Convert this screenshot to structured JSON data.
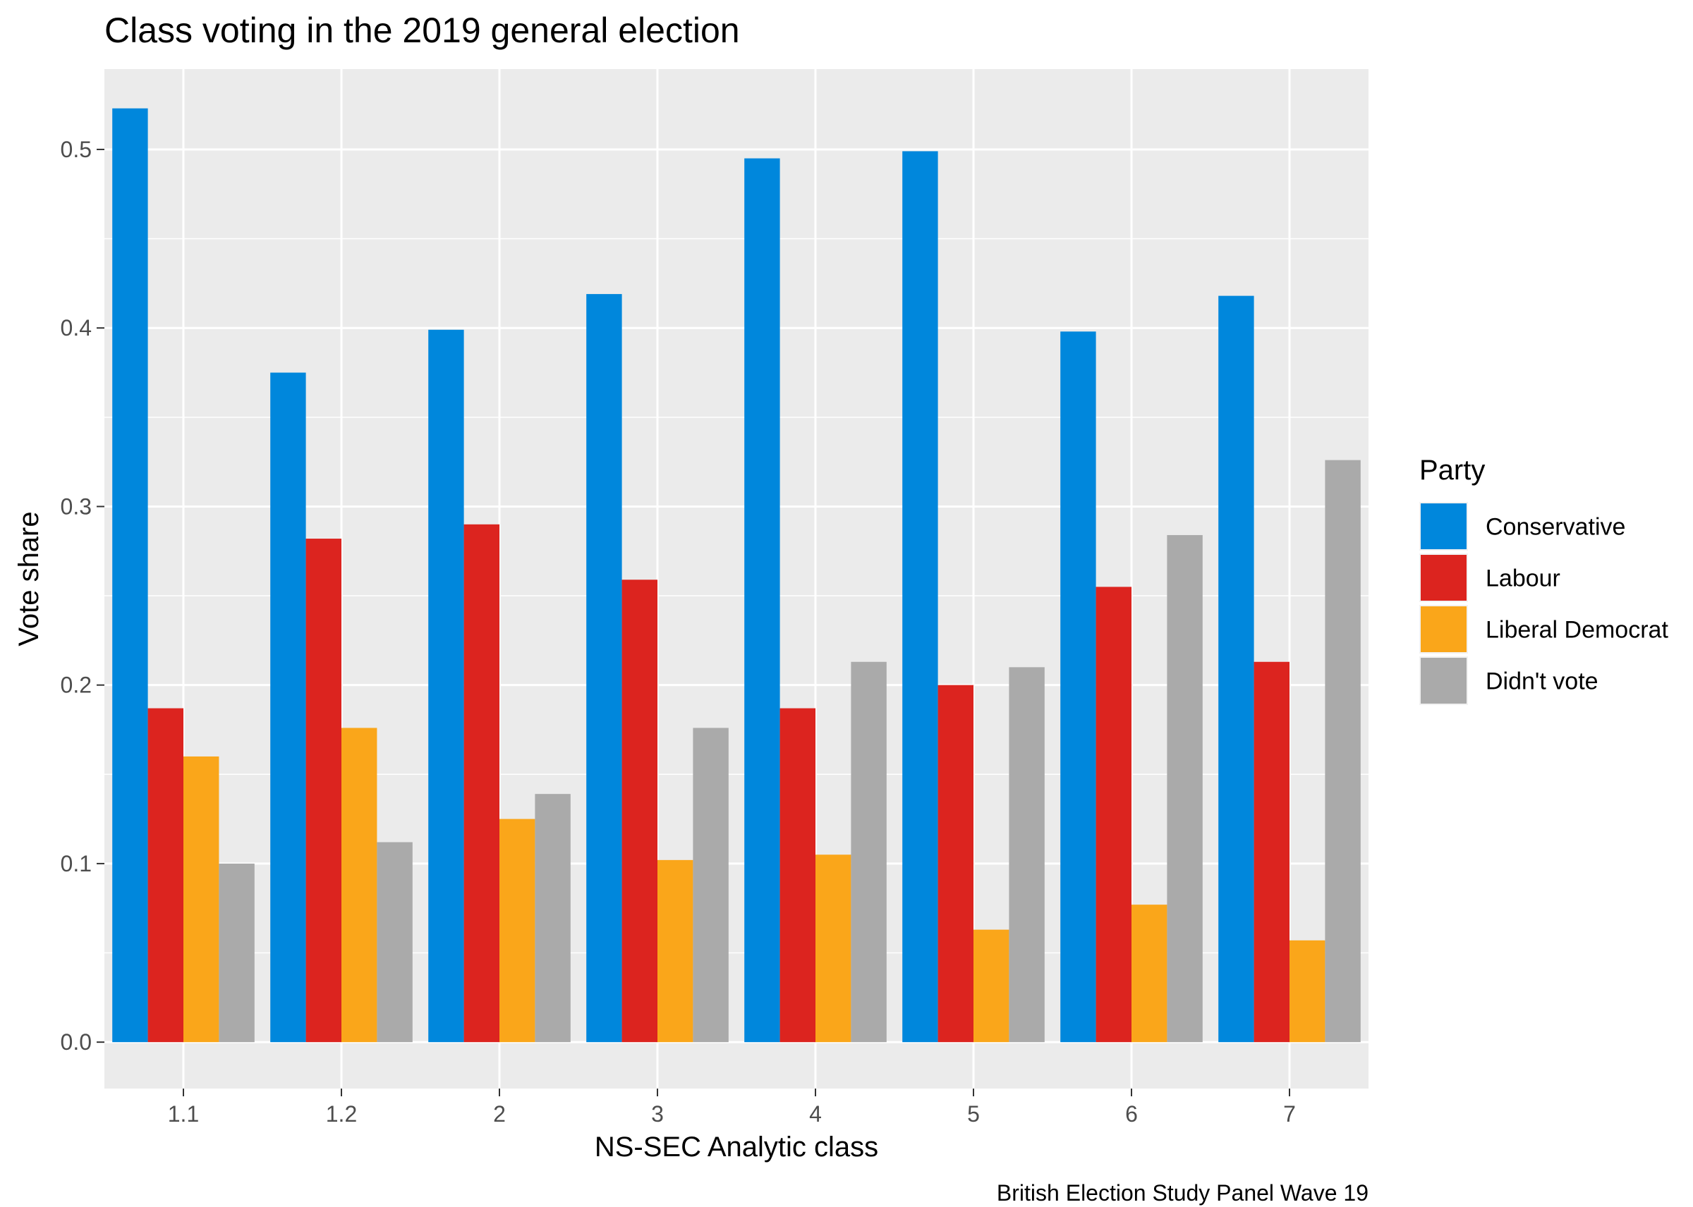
{
  "chart_data": {
    "type": "bar",
    "title": "Class voting in the 2019 general election",
    "xlabel": "NS-SEC Analytic class",
    "ylabel": "Vote share",
    "caption": "British Election Study Panel Wave 19",
    "categories": [
      "1.1",
      "1.2",
      "2",
      "3",
      "4",
      "5",
      "6",
      "7"
    ],
    "ylim": [
      -0.026,
      0.545
    ],
    "yticks": [
      0.0,
      0.1,
      0.2,
      0.3,
      0.4,
      0.5
    ],
    "ytick_labels": [
      "0.0",
      "0.1",
      "0.2",
      "0.3",
      "0.4",
      "0.5"
    ],
    "grid": true,
    "legend": {
      "title": "Party",
      "placement": "right"
    },
    "series": [
      {
        "name": "Conservative",
        "color": "#0087DC",
        "values": [
          0.523,
          0.375,
          0.399,
          0.419,
          0.495,
          0.499,
          0.398,
          0.418
        ]
      },
      {
        "name": "Labour",
        "color": "#DC241F",
        "values": [
          0.187,
          0.282,
          0.29,
          0.259,
          0.187,
          0.2,
          0.255,
          0.213
        ]
      },
      {
        "name": "Liberal Democrat",
        "color": "#FAA61A",
        "values": [
          0.16,
          0.176,
          0.125,
          0.102,
          0.105,
          0.063,
          0.077,
          0.057
        ]
      },
      {
        "name": "Didn't vote",
        "color": "#AAAAAA",
        "values": [
          0.1,
          0.112,
          0.139,
          0.176,
          0.213,
          0.21,
          0.284,
          0.326
        ]
      }
    ]
  }
}
